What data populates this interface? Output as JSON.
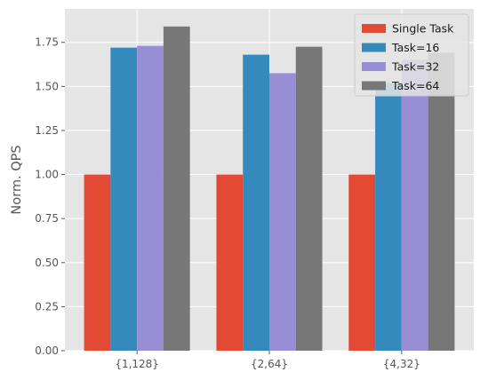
{
  "chart_data": {
    "type": "bar",
    "title": "",
    "xlabel": "",
    "ylabel": "Norm. QPS",
    "categories": [
      "{1,128}",
      "{2,64}",
      "{4,32}"
    ],
    "series": [
      {
        "name": "Single Task",
        "values": [
          1.0,
          1.0,
          1.0
        ],
        "color": "#E24A33"
      },
      {
        "name": "Task=16",
        "values": [
          1.72,
          1.68,
          1.52
        ],
        "color": "#348ABD"
      },
      {
        "name": "Task=32",
        "values": [
          1.73,
          1.575,
          1.65
        ],
        "color": "#988ED5"
      },
      {
        "name": "Task=64",
        "values": [
          1.84,
          1.725,
          1.69
        ],
        "color": "#777777"
      }
    ],
    "ylim": [
      0,
      1.94
    ],
    "yticks": [
      0.0,
      0.25,
      0.5,
      0.75,
      1.0,
      1.25,
      1.5,
      1.75
    ],
    "ytick_labels": [
      "0.00",
      "0.25",
      "0.50",
      "0.75",
      "1.00",
      "1.25",
      "1.50",
      "1.75"
    ],
    "grid": true,
    "legend_position": "top-right",
    "background_color": "#E5E5E5",
    "grid_color": "#FFFFFF"
  }
}
